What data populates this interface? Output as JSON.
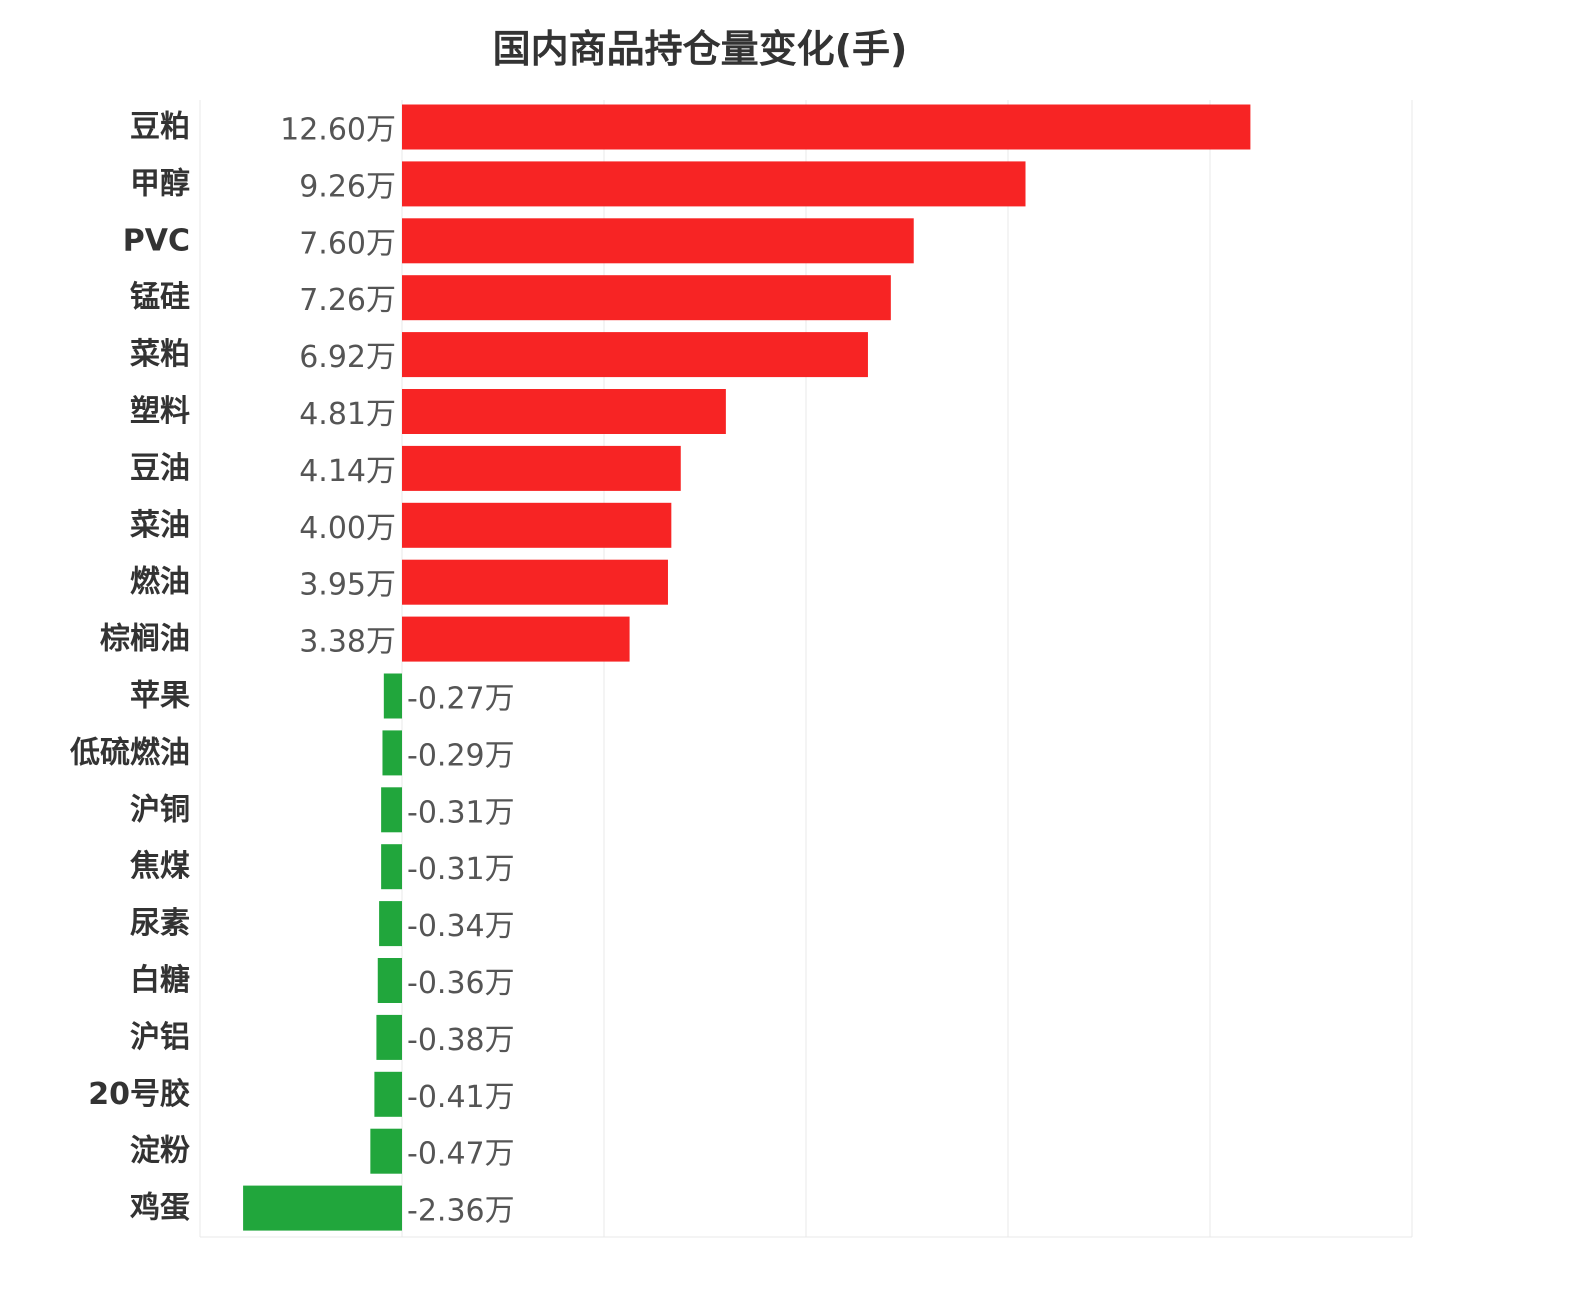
{
  "chart_data": {
    "type": "bar",
    "orientation": "horizontal",
    "title": "国内商品持仓量变化(手)",
    "unit": "万",
    "categories": [
      "豆粕",
      "甲醇",
      "PVC",
      "锰硅",
      "菜粕",
      "塑料",
      "豆油",
      "菜油",
      "燃油",
      "棕榈油",
      "苹果",
      "低硫燃油",
      "沪铜",
      "焦煤",
      "尿素",
      "白糖",
      "沪铝",
      "20号胶",
      "淀粉",
      "鸡蛋"
    ],
    "values": [
      12.6,
      9.26,
      7.6,
      7.26,
      6.92,
      4.81,
      4.14,
      4.0,
      3.95,
      3.38,
      -0.27,
      -0.29,
      -0.31,
      -0.31,
      -0.34,
      -0.36,
      -0.38,
      -0.41,
      -0.47,
      -2.36
    ],
    "value_labels": [
      "12.60万",
      "9.26万",
      "7.60万",
      "7.26万",
      "6.92万",
      "4.81万",
      "4.14万",
      "4.00万",
      "3.95万",
      "3.38万",
      "-0.27万",
      "-0.29万",
      "-0.31万",
      "-0.31万",
      "-0.34万",
      "-0.36万",
      "-0.38万",
      "-0.41万",
      "-0.47万",
      "-2.36万"
    ],
    "xlim": [
      -3,
      15
    ],
    "grid": true,
    "legend": false,
    "colors": {
      "positive": "#f72424",
      "negative": "#21a63c",
      "grid": "#e8e8e8"
    }
  }
}
